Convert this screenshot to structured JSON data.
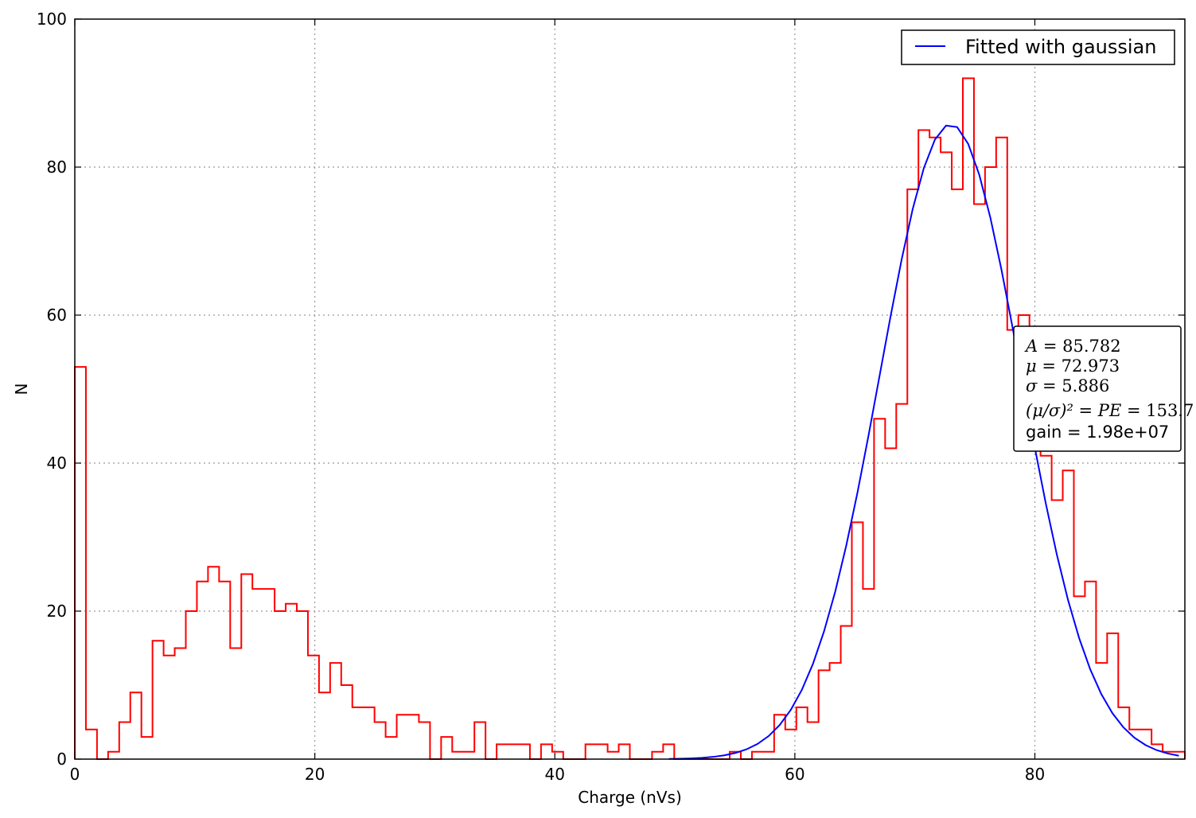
{
  "chart_data": {
    "type": "histogram",
    "xlabel": "Charge (nVs)",
    "ylabel": "N",
    "xlim": [
      0,
      92.5
    ],
    "ylim": [
      0,
      100
    ],
    "xticks": [
      0,
      20,
      40,
      60,
      80
    ],
    "yticks": [
      0,
      20,
      40,
      60,
      80,
      100
    ],
    "grid": true,
    "legend_position": "top-right",
    "histogram": {
      "color": "#ff0000",
      "bin_width": 0.925,
      "x_start": 0,
      "counts": [
        53,
        4,
        0,
        1,
        5,
        9,
        3,
        16,
        14,
        15,
        20,
        24,
        26,
        24,
        15,
        25,
        23,
        23,
        20,
        21,
        20,
        14,
        9,
        13,
        10,
        7,
        7,
        5,
        3,
        6,
        6,
        5,
        0,
        3,
        1,
        1,
        5,
        0,
        2,
        2,
        2,
        0,
        2,
        1,
        0,
        0,
        2,
        2,
        1,
        2,
        0,
        0,
        1,
        2,
        0,
        0,
        0,
        0,
        0,
        1,
        0,
        1,
        1,
        6,
        4,
        7,
        5,
        12,
        13,
        18,
        32,
        23,
        46,
        42,
        48,
        77,
        85,
        84,
        82,
        77,
        92,
        75,
        80,
        84,
        58,
        60,
        48,
        41,
        35,
        39,
        22,
        24,
        13,
        17,
        7,
        4,
        4,
        2,
        1,
        1
      ]
    },
    "series": [
      {
        "name": "Fitted with gaussian",
        "color": "#0000ff",
        "function": "gaussian",
        "A": 85.782,
        "mu": 72.973,
        "sigma": 5.886,
        "x_range": [
          49.5,
          92
        ]
      }
    ],
    "annotations": [
      {
        "label": "A",
        "value": "85.782"
      },
      {
        "label": "μ",
        "value": "72.973"
      },
      {
        "label": "σ",
        "value": "5.886"
      },
      {
        "label": "(μ/σ)² = PE",
        "value": "153.7"
      },
      {
        "label": "gain",
        "value": "1.98e+07"
      }
    ]
  }
}
